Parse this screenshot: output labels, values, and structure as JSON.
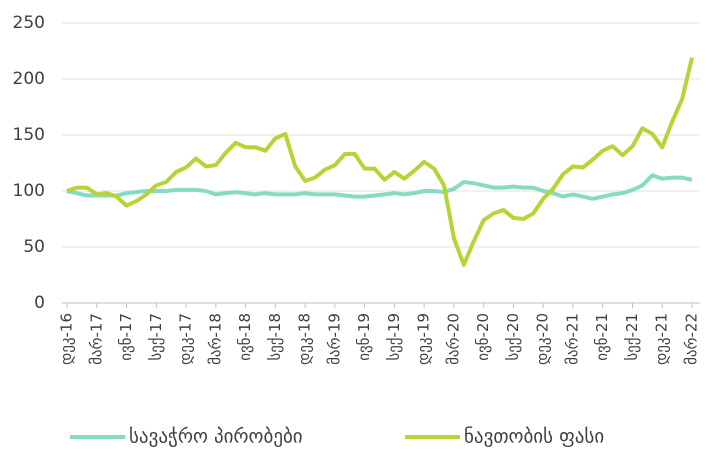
{
  "chart_data": {
    "type": "line",
    "categories": [
      "დეკ-16",
      null,
      null,
      "მარ-17",
      null,
      null,
      "ივნ-17",
      null,
      null,
      "სექ-17",
      null,
      null,
      "დეკ-17",
      null,
      null,
      "მარ-18",
      null,
      null,
      "ივნ-18",
      null,
      null,
      "სექ-18",
      null,
      null,
      "დეკ-18",
      null,
      null,
      "მარ-19",
      null,
      null,
      "ივნ-19",
      null,
      null,
      "სექ-19",
      null,
      null,
      "დეკ-19",
      null,
      null,
      "მარ-20",
      null,
      null,
      "ივნ-20",
      null,
      null,
      "სექ-20",
      null,
      null,
      "დეკ-20",
      null,
      null,
      "მარ-21",
      null,
      null,
      "ივნ-21",
      null,
      null,
      "სექ-21",
      null,
      null,
      "დეკ-21",
      null,
      null,
      "მარ-22"
    ],
    "series": [
      {
        "name": "სავაჭრო პირობები",
        "color": "#86dbc4",
        "values": [
          100,
          98,
          96,
          96,
          96,
          96,
          98,
          99,
          100,
          100,
          100,
          101,
          101,
          101,
          100,
          97,
          98,
          99,
          98,
          97,
          98,
          97,
          97,
          97,
          98,
          97,
          97,
          97,
          96,
          95,
          95,
          96,
          97,
          98,
          97,
          98,
          100,
          100,
          99,
          102,
          108,
          107,
          105,
          103,
          103,
          104,
          103,
          103,
          100,
          98,
          95,
          97,
          95,
          93,
          95,
          97,
          98,
          101,
          105,
          114,
          111,
          112,
          112,
          110
        ]
      },
      {
        "name": "ნავთობის ფასი",
        "color": "#b7d335",
        "values": [
          100,
          103,
          103,
          97,
          98,
          95,
          87,
          91,
          97,
          105,
          108,
          117,
          121,
          129,
          122,
          123,
          134,
          143,
          139,
          139,
          136,
          147,
          151,
          122,
          109,
          112,
          119,
          123,
          133,
          133,
          120,
          120,
          110,
          117,
          111,
          118,
          126,
          120,
          105,
          58,
          34,
          55,
          74,
          80,
          83,
          76,
          75,
          80,
          93,
          102,
          115,
          122,
          121,
          128,
          136,
          140,
          132,
          140,
          156,
          151,
          139,
          162,
          182,
          219
        ]
      }
    ],
    "ylim": [
      0,
      250
    ],
    "yticks": [
      0,
      50,
      100,
      150,
      200,
      250
    ],
    "grid": true,
    "legend": "bottom"
  }
}
